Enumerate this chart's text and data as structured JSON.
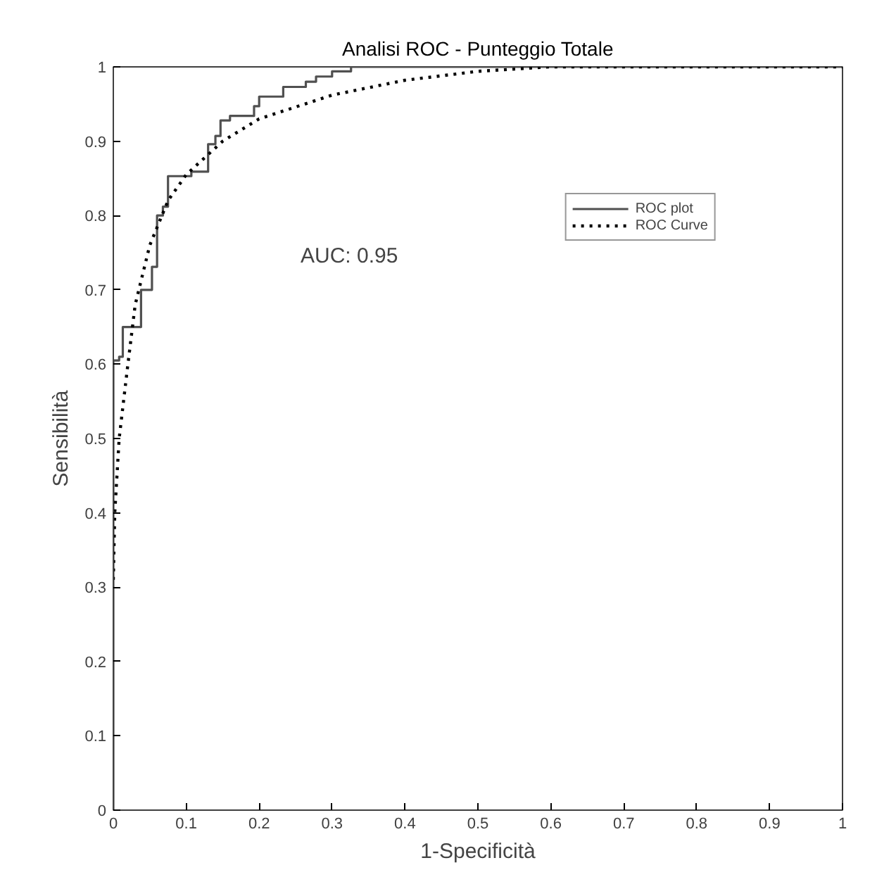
{
  "chart_data": {
    "type": "line",
    "title": "Analisi ROC - Punteggio Totale",
    "xlabel": "1-Specificità",
    "ylabel": "Sensibilità",
    "xlim": [
      0,
      1
    ],
    "ylim": [
      0,
      1
    ],
    "xticks": [
      0,
      0.1,
      0.2,
      0.3,
      0.4,
      0.5,
      0.6,
      0.7,
      0.8,
      0.9,
      1
    ],
    "yticks": [
      0,
      0.1,
      0.2,
      0.3,
      0.4,
      0.5,
      0.6,
      0.7,
      0.8,
      0.9,
      1
    ],
    "series": [
      {
        "name": "ROC plot",
        "type": "step",
        "color": "#505050",
        "line_style": "solid",
        "x": [
          0,
          0,
          0.008,
          0.013,
          0.038,
          0.053,
          0.06,
          0.068,
          0.075,
          0.107,
          0.13,
          0.14,
          0.147,
          0.16,
          0.193,
          0.2,
          0.233,
          0.264,
          0.278,
          0.3,
          0.326,
          1
        ],
        "values": [
          0,
          0.605,
          0.61,
          0.65,
          0.7,
          0.731,
          0.8,
          0.812,
          0.853,
          0.859,
          0.896,
          0.907,
          0.928,
          0.934,
          0.947,
          0.96,
          0.973,
          0.98,
          0.987,
          0.994,
          1,
          1
        ]
      },
      {
        "name": "ROC Curve",
        "color": "#000000",
        "line_style": "dotted",
        "x": [
          0,
          0.002,
          0.008,
          0.02,
          0.03,
          0.05,
          0.075,
          0.1,
          0.15,
          0.2,
          0.3,
          0.4,
          0.5,
          0.6,
          1
        ],
        "values": [
          0.31,
          0.4,
          0.5,
          0.6,
          0.68,
          0.76,
          0.82,
          0.855,
          0.9,
          0.93,
          0.962,
          0.982,
          0.994,
          1,
          1
        ]
      }
    ],
    "annotations": [
      "AUC: 0.95"
    ],
    "legend": "top right",
    "grid": false
  }
}
